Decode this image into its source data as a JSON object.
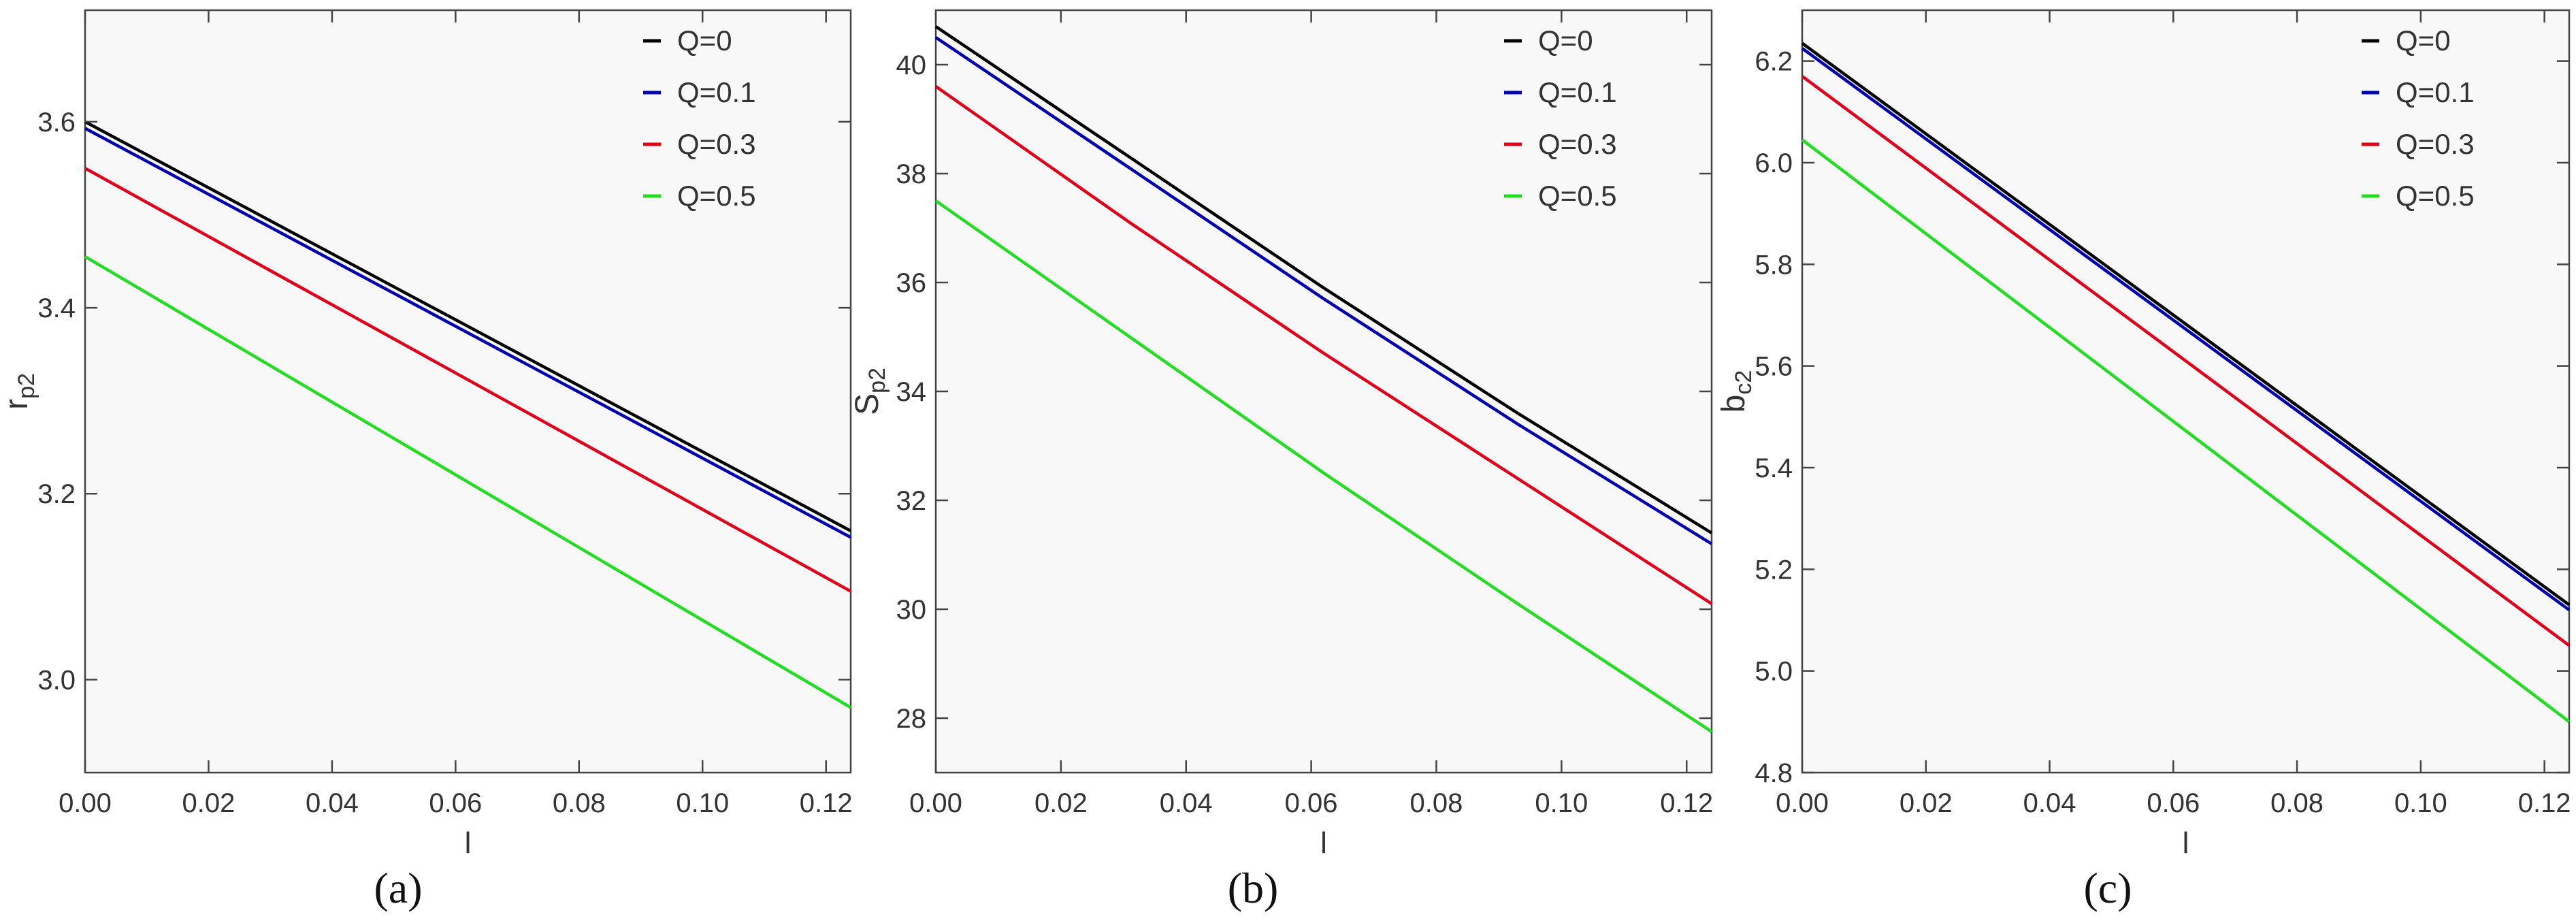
{
  "chart_data": [
    {
      "type": "line",
      "caption": "(a)",
      "xlabel": "l",
      "ylabel": {
        "main": "r",
        "sub": "p2"
      },
      "xlim": [
        0,
        0.124
      ],
      "ylim": [
        2.9,
        3.72
      ],
      "xticks": [
        0.0,
        0.02,
        0.04,
        0.06,
        0.08,
        0.1,
        0.12
      ],
      "xtick_labels": [
        "0.00",
        "0.02",
        "0.04",
        "0.06",
        "0.08",
        "0.10",
        "0.12"
      ],
      "yticks": [
        3.0,
        3.2,
        3.4,
        3.6
      ],
      "ytick_labels": [
        "3.0",
        "3.2",
        "3.4",
        "3.6"
      ],
      "legend_position": "top-right",
      "x": [
        0,
        0.124
      ],
      "series": [
        {
          "name": "Q=0",
          "color": "#000000",
          "values": [
            3.6,
            3.16
          ]
        },
        {
          "name": "Q=0.1",
          "color": "#0000b0",
          "values": [
            3.593,
            3.153
          ]
        },
        {
          "name": "Q=0.3",
          "color": "#e0001a",
          "values": [
            3.55,
            3.095
          ]
        },
        {
          "name": "Q=0.5",
          "color": "#22dd22",
          "values": [
            3.455,
            2.97
          ]
        }
      ]
    },
    {
      "type": "line",
      "caption": "(b)",
      "xlabel": "l",
      "ylabel": {
        "main": "S",
        "sub": "p2"
      },
      "xlim": [
        0,
        0.124
      ],
      "ylim": [
        27,
        41
      ],
      "xticks": [
        0.0,
        0.02,
        0.04,
        0.06,
        0.08,
        0.1,
        0.12
      ],
      "xtick_labels": [
        "0.00",
        "0.02",
        "0.04",
        "0.06",
        "0.08",
        "0.10",
        "0.12"
      ],
      "yticks": [
        28,
        30,
        32,
        34,
        36,
        38,
        40
      ],
      "ytick_labels": [
        "28",
        "30",
        "32",
        "34",
        "36",
        "38",
        "40"
      ],
      "legend_position": "top-right",
      "x": [
        0,
        0.031,
        0.062,
        0.093,
        0.124
      ],
      "series": [
        {
          "name": "Q=0",
          "color": "#000000",
          "values": [
            40.7,
            38.3,
            35.9,
            33.6,
            31.4
          ]
        },
        {
          "name": "Q=0.1",
          "color": "#0000b0",
          "values": [
            40.5,
            38.1,
            35.7,
            33.4,
            31.2
          ]
        },
        {
          "name": "Q=0.3",
          "color": "#e0001a",
          "values": [
            39.6,
            37.1,
            34.7,
            32.4,
            30.1
          ]
        },
        {
          "name": "Q=0.5",
          "color": "#22dd22",
          "values": [
            37.5,
            35.0,
            32.5,
            30.1,
            27.75
          ]
        }
      ]
    },
    {
      "type": "line",
      "caption": "(c)",
      "xlabel": "l",
      "ylabel": {
        "main": "b",
        "sub": "c2"
      },
      "xlim": [
        0,
        0.124
      ],
      "ylim": [
        4.8,
        6.3
      ],
      "xticks": [
        0.0,
        0.02,
        0.04,
        0.06,
        0.08,
        0.1,
        0.12
      ],
      "xtick_labels": [
        "0.00",
        "0.02",
        "0.04",
        "0.06",
        "0.08",
        "0.10",
        "0.12"
      ],
      "yticks": [
        4.8,
        5.0,
        5.2,
        5.4,
        5.6,
        5.8,
        6.0,
        6.2
      ],
      "ytick_labels": [
        "4.8",
        "5.0",
        "5.2",
        "5.4",
        "5.6",
        "5.8",
        "6.0",
        "6.2"
      ],
      "legend_position": "top-right",
      "x": [
        0,
        0.124
      ],
      "series": [
        {
          "name": "Q=0",
          "color": "#000000",
          "values": [
            6.235,
            5.13
          ]
        },
        {
          "name": "Q=0.1",
          "color": "#0000b0",
          "values": [
            6.225,
            5.12
          ]
        },
        {
          "name": "Q=0.3",
          "color": "#e0001a",
          "values": [
            6.17,
            5.05
          ]
        },
        {
          "name": "Q=0.5",
          "color": "#22dd22",
          "values": [
            6.045,
            4.9
          ]
        }
      ]
    }
  ]
}
